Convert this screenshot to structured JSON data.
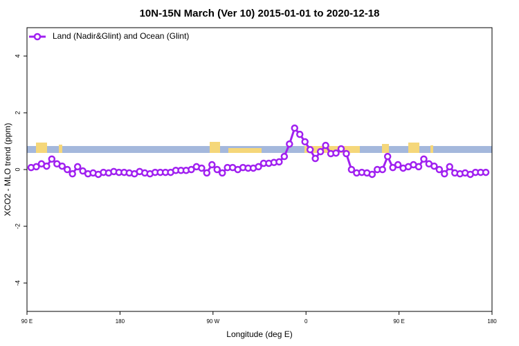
{
  "chart_data": {
    "type": "line",
    "title": "10N-15N March (Ver 10)   2015-01-01 to 2020-12-18",
    "x_label": "Longitude (deg E)",
    "y_label": "XCO2 - MLO trend (ppm)",
    "xlim": [
      90,
      540
    ],
    "ylim": [
      -5,
      5
    ],
    "xticks": [
      {
        "value": 90,
        "label": "90 E"
      },
      {
        "value": 180,
        "label": "180"
      },
      {
        "value": 270,
        "label": "90 W"
      },
      {
        "value": 360,
        "label": "0"
      },
      {
        "value": 450,
        "label": "90 E"
      },
      {
        "value": 540,
        "label": "180"
      }
    ],
    "yticks": [
      -4,
      -2,
      0,
      2,
      4
    ],
    "legend": "top-left",
    "x": [
      94,
      99,
      104,
      109,
      114,
      119,
      124,
      129,
      134,
      139,
      144,
      149,
      154,
      159,
      164,
      169,
      174,
      179,
      184,
      189,
      194,
      199,
      204,
      209,
      214,
      219,
      224,
      229,
      234,
      239,
      244,
      249,
      254,
      259,
      264,
      269,
      274,
      279,
      284,
      289,
      294,
      299,
      304,
      309,
      314,
      319,
      324,
      329,
      334,
      339,
      344,
      349,
      354,
      359,
      364,
      369,
      374,
      379,
      384,
      389,
      394,
      399,
      404,
      409,
      414,
      419,
      424,
      429,
      434,
      439,
      444,
      449,
      454,
      459,
      464,
      469,
      474,
      479,
      484,
      489,
      494,
      499,
      504,
      509,
      514,
      519,
      524,
      529,
      534
    ],
    "series": [
      {
        "name": "Land (Nadir&Glint) and Ocean (Glint)",
        "color": "#a020f0",
        "values": [
          0.07,
          0.1,
          0.2,
          0.12,
          0.37,
          0.2,
          0.12,
          0,
          -0.15,
          0.1,
          -0.05,
          -0.15,
          -0.12,
          -0.17,
          -0.1,
          -0.12,
          -0.07,
          -0.1,
          -0.1,
          -0.12,
          -0.15,
          -0.07,
          -0.12,
          -0.15,
          -0.1,
          -0.1,
          -0.1,
          -0.1,
          -0.03,
          -0.03,
          -0.03,
          0,
          0.1,
          0.05,
          -0.12,
          0.17,
          0,
          -0.12,
          0.07,
          0.07,
          0,
          0.07,
          0.05,
          0.05,
          0.1,
          0.22,
          0.22,
          0.25,
          0.27,
          0.46,
          0.9,
          1.46,
          1.24,
          0.98,
          0.7,
          0.39,
          0.63,
          0.85,
          0.56,
          0.58,
          0.73,
          0.56,
          0,
          -0.12,
          -0.1,
          -0.12,
          -0.17,
          0,
          0,
          0.46,
          0.07,
          0.17,
          0.05,
          0.1,
          0.17,
          0.1,
          0.37,
          0.2,
          0.12,
          0,
          -0.15,
          0.1,
          -0.12,
          -0.15,
          -0.12,
          -0.17,
          -0.1,
          -0.1,
          -0.1
        ]
      }
    ]
  }
}
